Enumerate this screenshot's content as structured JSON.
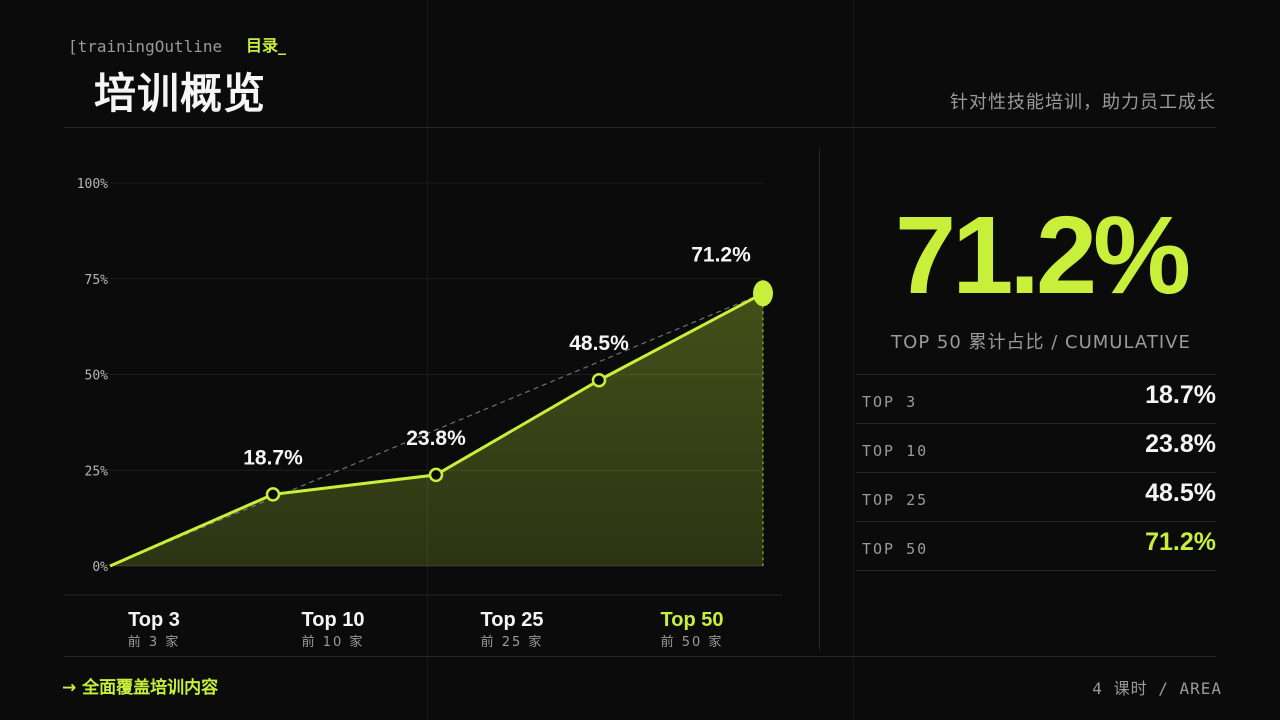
{
  "header": {
    "eyebrow_en": "[trainingOutline",
    "eyebrow_zh": "目录_",
    "title": "培训概览",
    "subtitle": "针对性技能培训，助力员工成长"
  },
  "chart_data": {
    "type": "area",
    "categories": [
      "Top 3",
      "Top 10",
      "Top 25",
      "Top 50"
    ],
    "category_sublabels": [
      "前 3 家",
      "前 10 家",
      "前 25 家",
      "前 50 家"
    ],
    "origin_value": 0,
    "values": [
      18.7,
      23.8,
      48.5,
      71.2
    ],
    "data_labels": [
      "18.7%",
      "23.8%",
      "48.5%",
      "71.2%"
    ],
    "yticks": [
      "0%",
      "25%",
      "50%",
      "75%",
      "100%"
    ],
    "ylim": [
      0,
      100
    ],
    "highlight_index": 3,
    "trend_line": "dashed",
    "grid": true,
    "title": "",
    "xlabel": "",
    "ylabel": ""
  },
  "summary": {
    "big_value": "71.2%",
    "big_label": "TOP 50  累计占比  / CUMULATIVE",
    "rows": [
      {
        "label": "TOP 3",
        "value": "18.7%"
      },
      {
        "label": "TOP 10",
        "value": "23.8%"
      },
      {
        "label": "TOP 25",
        "value": "48.5%"
      },
      {
        "label": "TOP 50",
        "value": "71.2%"
      }
    ]
  },
  "footer": {
    "left": "→  全面覆盖培训内容",
    "right": "4  课时  / AREA"
  },
  "colors": {
    "accent": "#c8ef3a",
    "background": "#0b0b0b",
    "muted": "#9a9a9a"
  }
}
